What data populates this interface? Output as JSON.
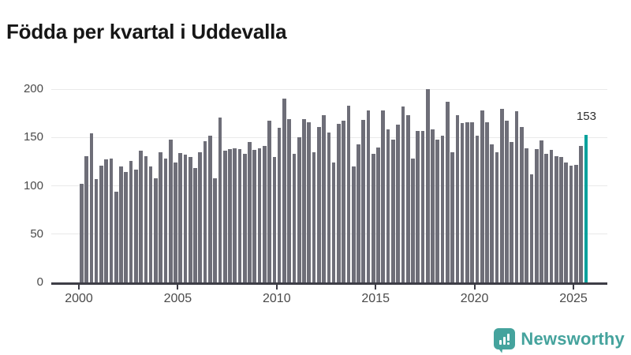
{
  "title": "Födda per kvartal i Uddevalla",
  "annotation": {
    "label": "153"
  },
  "footer": {
    "brand": "Newsworthy"
  },
  "colors": {
    "bar": "#6e6e78",
    "highlight": "#00a19c",
    "brand_teal": "#45a39d",
    "gridline": "#e9e9e9",
    "axis": "#3d3d46",
    "title_text": "#161616",
    "tick_text": "#4a4a4a"
  },
  "chart_data": {
    "type": "bar",
    "title": "Födda per kvartal i Uddevalla",
    "xlabel": "",
    "ylabel": "",
    "start_period": "2000-Q1",
    "end_period": "2025-Q3",
    "frequency": "quarterly",
    "x_tick_labels": [
      "2000",
      "2005",
      "2010",
      "2015",
      "2020",
      "2025"
    ],
    "y_ticks": [
      0,
      50,
      100,
      150,
      200
    ],
    "ylim": [
      0,
      210
    ],
    "grid": true,
    "legend": false,
    "highlight_index": 102,
    "highlight_value": 153,
    "values": [
      102,
      131,
      154,
      107,
      121,
      127,
      128,
      94,
      120,
      114,
      126,
      117,
      136,
      131,
      120,
      108,
      135,
      128,
      148,
      124,
      134,
      132,
      130,
      118,
      135,
      146,
      152,
      108,
      171,
      136,
      138,
      139,
      138,
      133,
      145,
      137,
      139,
      141,
      167,
      130,
      160,
      190,
      169,
      133,
      150,
      169,
      166,
      135,
      161,
      173,
      155,
      124,
      164,
      167,
      183,
      120,
      143,
      168,
      178,
      133,
      140,
      178,
      158,
      148,
      163,
      182,
      173,
      128,
      157,
      157,
      200,
      158,
      148,
      152,
      187,
      135,
      173,
      165,
      166,
      166,
      152,
      178,
      166,
      143,
      135,
      180,
      167,
      145,
      177,
      161,
      139,
      112,
      138,
      147,
      133,
      137,
      131,
      130,
      124,
      121,
      122,
      141,
      153
    ]
  }
}
